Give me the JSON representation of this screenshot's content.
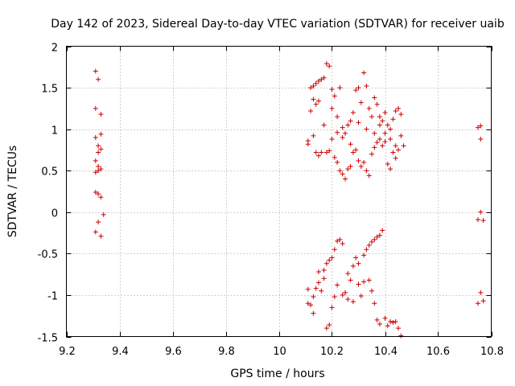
{
  "chart_data": {
    "type": "scatter",
    "title": "Day 142 of 2023, Sidereal Day-to-day VTEC variation (SDTVAR) for receiver uaib",
    "xlabel": "GPS time / hours",
    "ylabel": "SDTVAR / TECUs",
    "xlim": [
      9.2,
      10.8
    ],
    "ylim": [
      -1.5,
      2
    ],
    "xticks": [
      9.2,
      9.4,
      9.6,
      9.8,
      10,
      10.2,
      10.4,
      10.6,
      10.8
    ],
    "xtick_labels": [
      "9.2",
      "9.4",
      "9.6",
      "9.8",
      "10",
      "10.2",
      "10.4",
      "10.6",
      "10.8"
    ],
    "yticks": [
      -1.5,
      -1,
      -0.5,
      0,
      0.5,
      1,
      1.5,
      2
    ],
    "ytick_labels": [
      "-1.5",
      "-1",
      "-0.5",
      "0",
      "0.5",
      "1",
      "1.5",
      "2"
    ],
    "grid": true,
    "marker": "+",
    "color": "#cc0000",
    "series": [
      {
        "name": "SDTVAR",
        "points": [
          [
            9.31,
            1.7
          ],
          [
            9.31,
            1.25
          ],
          [
            9.32,
            1.6
          ],
          [
            9.33,
            1.18
          ],
          [
            9.31,
            0.9
          ],
          [
            9.33,
            0.94
          ],
          [
            9.32,
            0.8
          ],
          [
            9.33,
            0.76
          ],
          [
            9.32,
            0.72
          ],
          [
            9.31,
            0.62
          ],
          [
            9.32,
            0.55
          ],
          [
            9.33,
            0.52
          ],
          [
            9.31,
            0.48
          ],
          [
            9.32,
            0.5
          ],
          [
            9.31,
            0.24
          ],
          [
            9.32,
            0.22
          ],
          [
            9.33,
            0.18
          ],
          [
            9.34,
            -0.03
          ],
          [
            9.32,
            -0.12
          ],
          [
            9.31,
            -0.24
          ],
          [
            9.33,
            -0.29
          ],
          [
            10.11,
            0.86
          ],
          [
            10.11,
            0.82
          ],
          [
            10.12,
            1.5
          ],
          [
            10.12,
            1.22
          ],
          [
            10.13,
            1.52
          ],
          [
            10.13,
            1.36
          ],
          [
            10.14,
            1.55
          ],
          [
            10.14,
            1.3
          ],
          [
            10.15,
            1.58
          ],
          [
            10.15,
            1.34
          ],
          [
            10.16,
            1.6
          ],
          [
            10.17,
            1.62
          ],
          [
            10.18,
            1.79
          ],
          [
            10.19,
            1.76
          ],
          [
            10.2,
            1.48
          ],
          [
            10.21,
            1.4
          ],
          [
            10.2,
            1.25
          ],
          [
            10.22,
            1.15
          ],
          [
            10.23,
            1.5
          ],
          [
            10.24,
            1.02
          ],
          [
            10.25,
            0.95
          ],
          [
            10.26,
            1.05
          ],
          [
            10.27,
            1.1
          ],
          [
            10.28,
            1.2
          ],
          [
            10.29,
            1.47
          ],
          [
            10.3,
            1.5
          ],
          [
            10.31,
            1.32
          ],
          [
            10.32,
            1.68
          ],
          [
            10.33,
            1.52
          ],
          [
            10.34,
            1.25
          ],
          [
            10.35,
            1.15
          ],
          [
            10.36,
            1.38
          ],
          [
            10.37,
            1.3
          ],
          [
            10.38,
            1.15
          ],
          [
            10.39,
            1.1
          ],
          [
            10.4,
            1.2
          ],
          [
            10.41,
            1.05
          ],
          [
            10.42,
            1.0
          ],
          [
            10.43,
            1.12
          ],
          [
            10.44,
            1.22
          ],
          [
            10.45,
            1.25
          ],
          [
            10.46,
            1.18
          ],
          [
            10.13,
            0.92
          ],
          [
            10.14,
            0.72
          ],
          [
            10.15,
            0.68
          ],
          [
            10.16,
            0.72
          ],
          [
            10.17,
            1.05
          ],
          [
            10.18,
            0.72
          ],
          [
            10.19,
            0.74
          ],
          [
            10.2,
            0.88
          ],
          [
            10.21,
            0.66
          ],
          [
            10.22,
            0.6
          ],
          [
            10.23,
            0.5
          ],
          [
            10.24,
            0.46
          ],
          [
            10.25,
            0.4
          ],
          [
            10.26,
            0.52
          ],
          [
            10.27,
            0.55
          ],
          [
            10.28,
            0.72
          ],
          [
            10.29,
            0.75
          ],
          [
            10.3,
            0.62
          ],
          [
            10.31,
            0.55
          ],
          [
            10.32,
            0.6
          ],
          [
            10.33,
            0.5
          ],
          [
            10.34,
            0.44
          ],
          [
            10.35,
            0.7
          ],
          [
            10.36,
            0.78
          ],
          [
            10.37,
            0.84
          ],
          [
            10.38,
            0.88
          ],
          [
            10.39,
            0.8
          ],
          [
            10.4,
            0.95
          ],
          [
            10.41,
            0.58
          ],
          [
            10.42,
            0.52
          ],
          [
            10.43,
            0.72
          ],
          [
            10.44,
            0.8
          ],
          [
            10.45,
            0.75
          ],
          [
            10.46,
            0.92
          ],
          [
            10.47,
            0.8
          ],
          [
            10.22,
            0.96
          ],
          [
            10.24,
            0.9
          ],
          [
            10.27,
            0.82
          ],
          [
            10.3,
            1.08
          ],
          [
            10.33,
            1.0
          ],
          [
            10.36,
            0.95
          ],
          [
            10.38,
            1.05
          ],
          [
            10.4,
            0.85
          ],
          [
            10.42,
            0.88
          ],
          [
            10.44,
            0.65
          ],
          [
            10.11,
            -0.93
          ],
          [
            10.11,
            -1.1
          ],
          [
            10.12,
            -1.12
          ],
          [
            10.13,
            -1.22
          ],
          [
            10.13,
            -1.02
          ],
          [
            10.14,
            -0.92
          ],
          [
            10.15,
            -0.85
          ],
          [
            10.15,
            -0.72
          ],
          [
            10.16,
            -0.95
          ],
          [
            10.17,
            -0.7
          ],
          [
            10.17,
            -0.8
          ],
          [
            10.18,
            -0.62
          ],
          [
            10.18,
            -1.4
          ],
          [
            10.19,
            -1.36
          ],
          [
            10.19,
            -0.58
          ],
          [
            10.2,
            -0.55
          ],
          [
            10.2,
            -1.15
          ],
          [
            10.21,
            -0.45
          ],
          [
            10.21,
            -1.02
          ],
          [
            10.22,
            -0.35
          ],
          [
            10.22,
            -0.88
          ],
          [
            10.23,
            -0.33
          ],
          [
            10.24,
            -0.38
          ],
          [
            10.24,
            -1.0
          ],
          [
            10.25,
            -0.97
          ],
          [
            10.26,
            -0.74
          ],
          [
            10.26,
            -1.05
          ],
          [
            10.27,
            -0.82
          ],
          [
            10.28,
            -0.65
          ],
          [
            10.28,
            -1.08
          ],
          [
            10.29,
            -0.55
          ],
          [
            10.3,
            -0.62
          ],
          [
            10.3,
            -0.87
          ],
          [
            10.31,
            -1.01
          ],
          [
            10.32,
            -0.84
          ],
          [
            10.32,
            -0.52
          ],
          [
            10.33,
            -0.45
          ],
          [
            10.34,
            -0.82
          ],
          [
            10.34,
            -0.4
          ],
          [
            10.35,
            -0.36
          ],
          [
            10.35,
            -0.95
          ],
          [
            10.36,
            -1.1
          ],
          [
            10.36,
            -0.33
          ],
          [
            10.37,
            -0.3
          ],
          [
            10.37,
            -1.3
          ],
          [
            10.38,
            -0.28
          ],
          [
            10.38,
            -1.35
          ],
          [
            10.39,
            -0.22
          ],
          [
            10.4,
            -1.28
          ],
          [
            10.41,
            -1.37
          ],
          [
            10.42,
            -1.32
          ],
          [
            10.43,
            -1.33
          ],
          [
            10.44,
            -1.32
          ],
          [
            10.45,
            -1.4
          ],
          [
            10.46,
            -1.49
          ],
          [
            10.75,
            1.02
          ],
          [
            10.76,
            1.04
          ],
          [
            10.76,
            0.88
          ],
          [
            10.76,
            0.0
          ],
          [
            10.75,
            -0.09
          ],
          [
            10.77,
            -0.1
          ],
          [
            10.76,
            -0.97
          ],
          [
            10.77,
            -1.07
          ],
          [
            10.75,
            -1.1
          ]
        ]
      }
    ]
  }
}
